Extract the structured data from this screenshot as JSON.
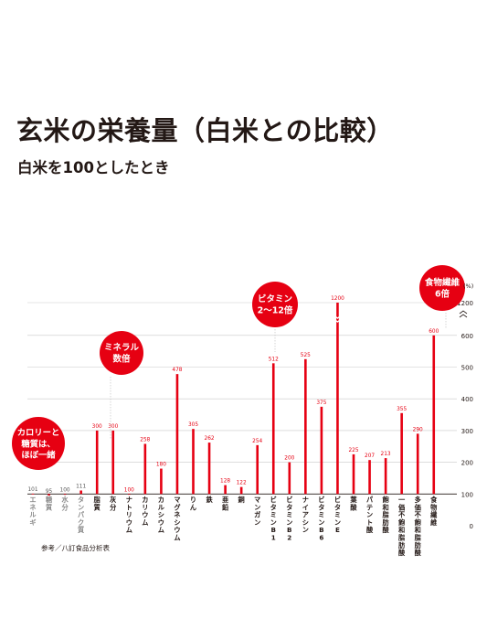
{
  "title": "玄米の栄養量（白米との比較）",
  "subtitle": "白米を100としたとき",
  "source": "参考／八訂食品分析表",
  "unit": "(%)",
  "colors": {
    "bar": "#e60012",
    "text": "#231815",
    "grid": "#c9c9c9",
    "axis": "#231815",
    "note": "#ffffff"
  },
  "chart_data": {
    "type": "bar",
    "title": "玄米の栄養量（白米との比較）",
    "subtitle": "白米を100としたとき",
    "xlabel": "",
    "ylabel": "(%)",
    "yticks": [
      0,
      100,
      200,
      300,
      400,
      500,
      600,
      1200
    ],
    "axis_break": [
      600,
      1200
    ],
    "ylim": [
      0,
      1200
    ],
    "grid": true,
    "categories": [
      "エネルギ",
      "糖質",
      "水分",
      "タンパク質",
      "脂質",
      "灰分",
      "ナトリウム",
      "カリウム",
      "カルシウム",
      "マグネシウム",
      "りん",
      "鉄",
      "亜鉛",
      "銅",
      "マンガン",
      "ビタミンB1",
      "ビタミンB2",
      "ナイアシン",
      "ビタミンB6",
      "ビタミンE",
      "葉酸",
      "パテント酸",
      "飽和脂肪酸",
      "一価不飽和脂肪酸",
      "多価不飽和脂肪酸",
      "食物繊維"
    ],
    "values": [
      101,
      95,
      100,
      111,
      300,
      300,
      100,
      258,
      180,
      478,
      305,
      262,
      128,
      122,
      254,
      512,
      200,
      525,
      375,
      1200,
      225,
      207,
      213,
      355,
      290,
      600
    ],
    "label_style": [
      "gray",
      "gray",
      "gray",
      "gray",
      "red",
      "red",
      "red",
      "red",
      "red",
      "red",
      "red",
      "red",
      "red",
      "red",
      "red",
      "red",
      "red",
      "red",
      "red",
      "red",
      "red",
      "red",
      "red",
      "red",
      "red",
      "red"
    ],
    "callouts": [
      {
        "lines": [
          "カロリーと",
          "糖質は、",
          "ほぼ一緒"
        ]
      },
      {
        "lines": [
          "ミネラル",
          "数倍"
        ]
      },
      {
        "lines": [
          "ビタミン",
          "2〜12倍"
        ]
      },
      {
        "lines": [
          "食物繊維",
          "6倍"
        ]
      }
    ]
  }
}
